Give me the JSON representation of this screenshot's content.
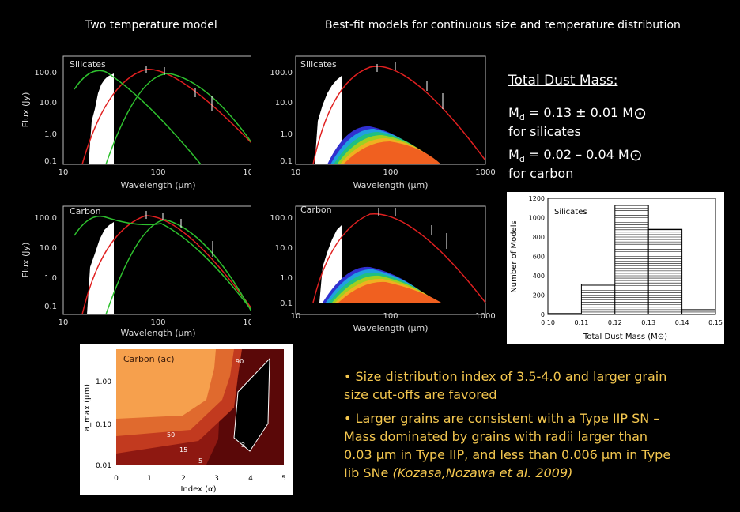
{
  "titles": {
    "left": "Two temperature model",
    "right": "Best-fit models for continuous size and temperature distribution"
  },
  "sed_panels": [
    {
      "id": "tl",
      "label": "Silicates",
      "xlabel": "Wavelength (μm)",
      "ylabel": "Flux (Jy)"
    },
    {
      "id": "tr",
      "label": "Silicates",
      "xlabel": "Wavelength (μm)"
    },
    {
      "id": "bl",
      "label": "Carbon",
      "xlabel": "Wavelength (μm)",
      "ylabel": "Flux (Jy)"
    },
    {
      "id": "br",
      "label": "Carbon",
      "xlabel": "Wavelength (μm)"
    }
  ],
  "sed_axes": {
    "x_ticks": [
      "10",
      "100",
      "1000"
    ],
    "y_ticks": [
      "100.0",
      "10.0",
      "1.0",
      "0.1"
    ]
  },
  "mass": {
    "heading": "Total Dust Mass:",
    "line1_prefix": "M",
    "line1_sub": "d",
    "line1_value": " = 0.13 ± 0.01 M",
    "line1_note": "for silicates",
    "line2_prefix": "M",
    "line2_sub": "d",
    "line2_value": " = 0.02 – 0.04 M",
    "line2_note": "for carbon",
    "sun_symbol": "⊙"
  },
  "histogram": {
    "label": "Silicates",
    "ylabel": "Number of Models",
    "xlabel": "Total Dust Mass (M⊙)",
    "y_ticks": [
      "1200",
      "1000",
      "800",
      "600",
      "400",
      "200",
      "0"
    ],
    "x_ticks": [
      "0.10",
      "0.11",
      "0.12",
      "0.13",
      "0.14",
      "0.15"
    ]
  },
  "chart_data": {
    "type": "bar",
    "categories": [
      "0.105",
      "0.115",
      "0.125",
      "0.135",
      "0.145"
    ],
    "values": [
      10,
      310,
      1130,
      880,
      50
    ],
    "xlabel": "Total Dust Mass (M⊙)",
    "ylabel": "Number of Models",
    "ylim": [
      0,
      1200
    ],
    "xlim": [
      0.1,
      0.15
    ]
  },
  "contour": {
    "label": "Carbon (ac)",
    "xlabel": "Index (α)",
    "ylabel": "a_max (μm)",
    "x_ticks": [
      "0",
      "1",
      "2",
      "3",
      "4",
      "5"
    ],
    "y_ticks": [
      "1.00",
      "0.10",
      "0.01"
    ],
    "level_labels": [
      "90",
      "50",
      "15",
      "5",
      "3"
    ],
    "colors": [
      "#f6a04d",
      "#e06a2e",
      "#c23a1f",
      "#8e1811",
      "#5a0808"
    ]
  },
  "bullets": [
    "• Size distribution index of 3.5-4.0 and larger grain size cut-offs are favored",
    "• Larger grains are consistent with a Type IIP SN – Mass dominated by grains with radii larger than 0.03 μm in Type IIP, and less than 0.006 μm in Type Iib SNe "
  ],
  "citation": "(Kozasa,Nozawa et al. 2009)"
}
